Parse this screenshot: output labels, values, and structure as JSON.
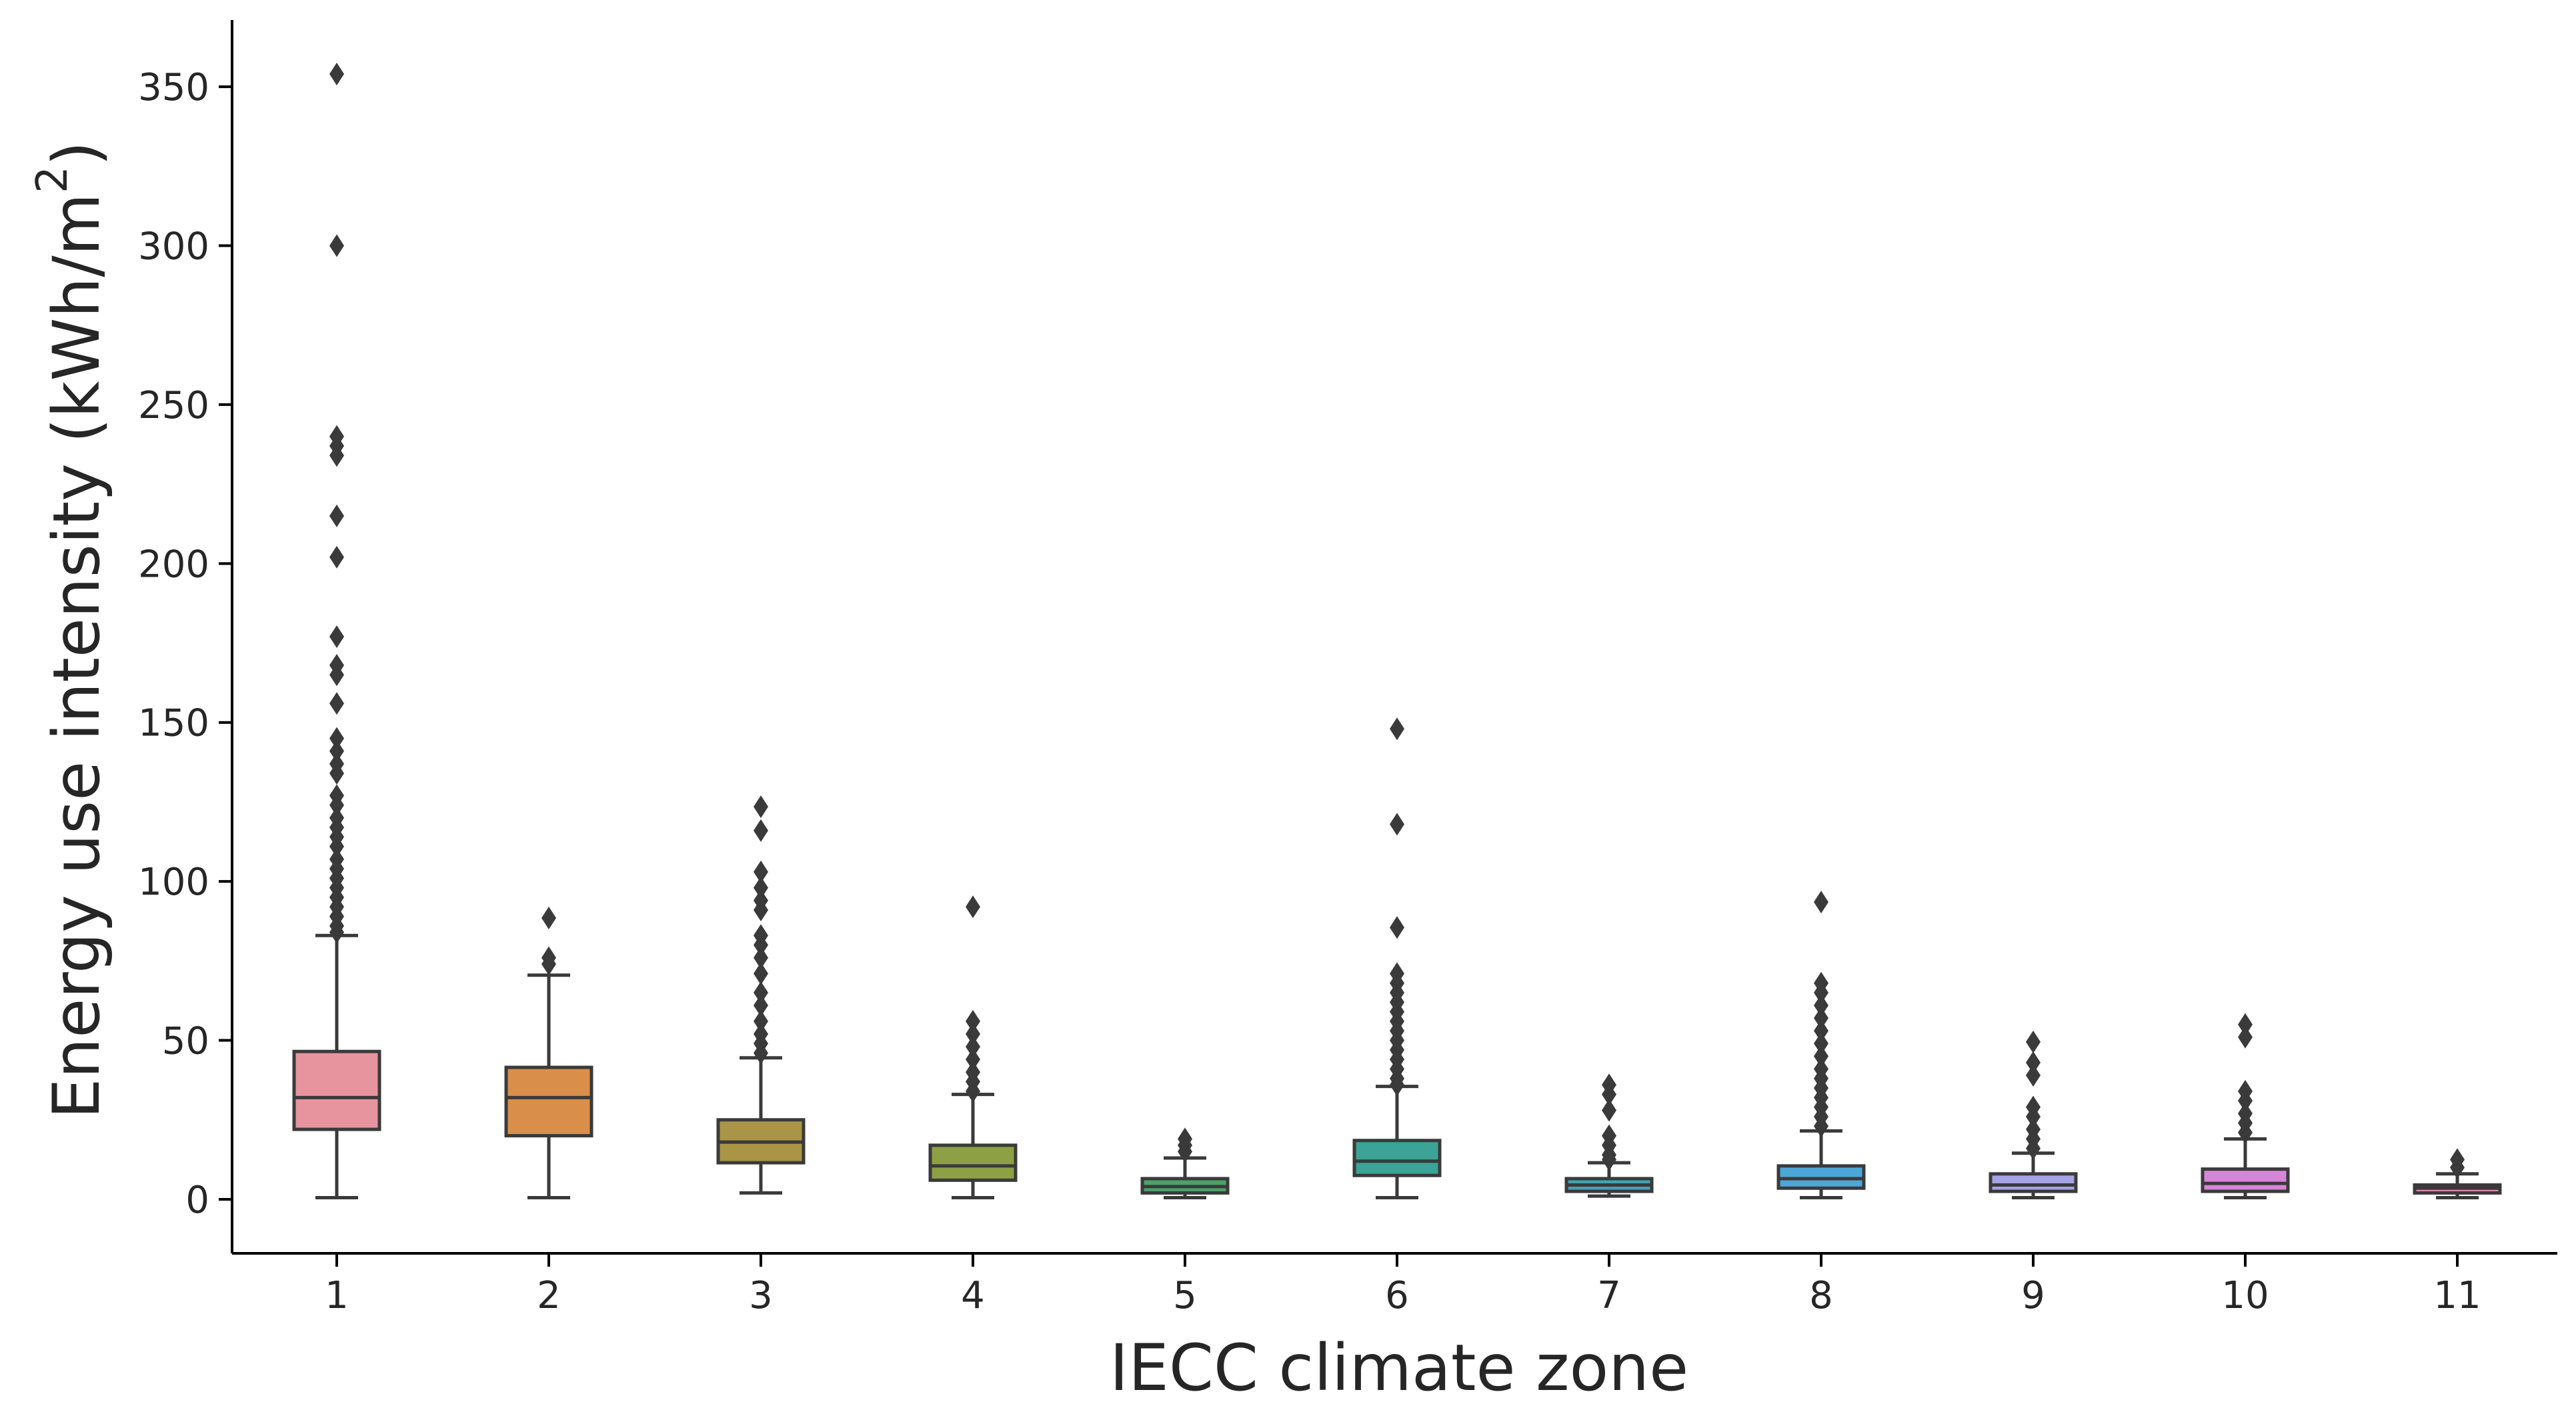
{
  "chart_data": {
    "type": "box",
    "title": "",
    "xlabel": "IECC climate zone",
    "ylabel": {
      "text_before_superscript": "Energy use intensity (kWh/m",
      "superscript": "2",
      "text_after_superscript": ")"
    },
    "ylim": [
      -17,
      371
    ],
    "yticks": [
      0,
      50,
      100,
      150,
      200,
      250,
      300,
      350
    ],
    "grid": false,
    "legend": "none",
    "categories": [
      "1",
      "2",
      "3",
      "4",
      "5",
      "6",
      "7",
      "8",
      "9",
      "10",
      "11"
    ],
    "colors": [
      "#e8949f",
      "#d98f4a",
      "#a99545",
      "#8ea044",
      "#4ba367",
      "#3ba397",
      "#42a2b5",
      "#4da6d8",
      "#a4a3e4",
      "#d586d8",
      "#e689b6"
    ],
    "boxes": [
      {
        "category": "1",
        "whisker_low": 0.5,
        "q1": 22,
        "median": 32,
        "q3": 46.5,
        "whisker_high": 83,
        "outliers": [
          354,
          300,
          240,
          237,
          234,
          215,
          202,
          177,
          168,
          165,
          156,
          145,
          141,
          137,
          134,
          127,
          124,
          120,
          117,
          114,
          111,
          107,
          104,
          101,
          98,
          95,
          92,
          89,
          86,
          84
        ]
      },
      {
        "category": "2",
        "whisker_low": 0.5,
        "q1": 20,
        "median": 32,
        "q3": 41.5,
        "whisker_high": 70.5,
        "outliers": [
          88.5,
          76,
          74
        ]
      },
      {
        "category": "3",
        "whisker_low": 2,
        "q1": 11.5,
        "median": 18,
        "q3": 25,
        "whisker_high": 44.5,
        "outliers": [
          123.5,
          116,
          103,
          98,
          94,
          91,
          83,
          80,
          76,
          71,
          65,
          61,
          56,
          52,
          49,
          46
        ]
      },
      {
        "category": "4",
        "whisker_low": 0.5,
        "q1": 6,
        "median": 10.5,
        "q3": 17,
        "whisker_high": 33,
        "outliers": [
          92,
          56,
          52,
          48,
          44,
          40,
          37,
          34
        ]
      },
      {
        "category": "5",
        "whisker_low": 0.5,
        "q1": 2,
        "median": 4,
        "q3": 6.5,
        "whisker_high": 13,
        "outliers": [
          19,
          17,
          15
        ]
      },
      {
        "category": "6",
        "whisker_low": 0.5,
        "q1": 7.5,
        "median": 12,
        "q3": 18.5,
        "whisker_high": 35.5,
        "outliers": [
          148,
          118,
          85.5,
          71,
          68,
          65,
          62,
          59,
          56,
          53,
          50,
          47,
          44,
          41,
          38,
          36
        ]
      },
      {
        "category": "7",
        "whisker_low": 1,
        "q1": 2.5,
        "median": 4.5,
        "q3": 6.5,
        "whisker_high": 11.5,
        "outliers": [
          36,
          33,
          28,
          20,
          17,
          14,
          12.5
        ]
      },
      {
        "category": "8",
        "whisker_low": 0.5,
        "q1": 3.5,
        "median": 6.5,
        "q3": 10.5,
        "whisker_high": 21.5,
        "outliers": [
          93.5,
          68,
          65,
          61,
          57,
          53,
          49,
          45,
          41,
          38,
          35,
          32,
          29,
          26,
          23
        ]
      },
      {
        "category": "9",
        "whisker_low": 0.5,
        "q1": 2.5,
        "median": 4.5,
        "q3": 8,
        "whisker_high": 14.5,
        "outliers": [
          49.5,
          43,
          39,
          29,
          26,
          22,
          19,
          16
        ]
      },
      {
        "category": "10",
        "whisker_low": 0.5,
        "q1": 2.5,
        "median": 5,
        "q3": 9.5,
        "whisker_high": 19,
        "outliers": [
          55,
          51,
          34,
          31,
          27,
          24,
          21
        ]
      },
      {
        "category": "11",
        "whisker_low": 0.5,
        "q1": 2,
        "median": 3.5,
        "q3": 4.5,
        "whisker_high": 8,
        "outliers": [
          12.5,
          10
        ]
      }
    ]
  }
}
